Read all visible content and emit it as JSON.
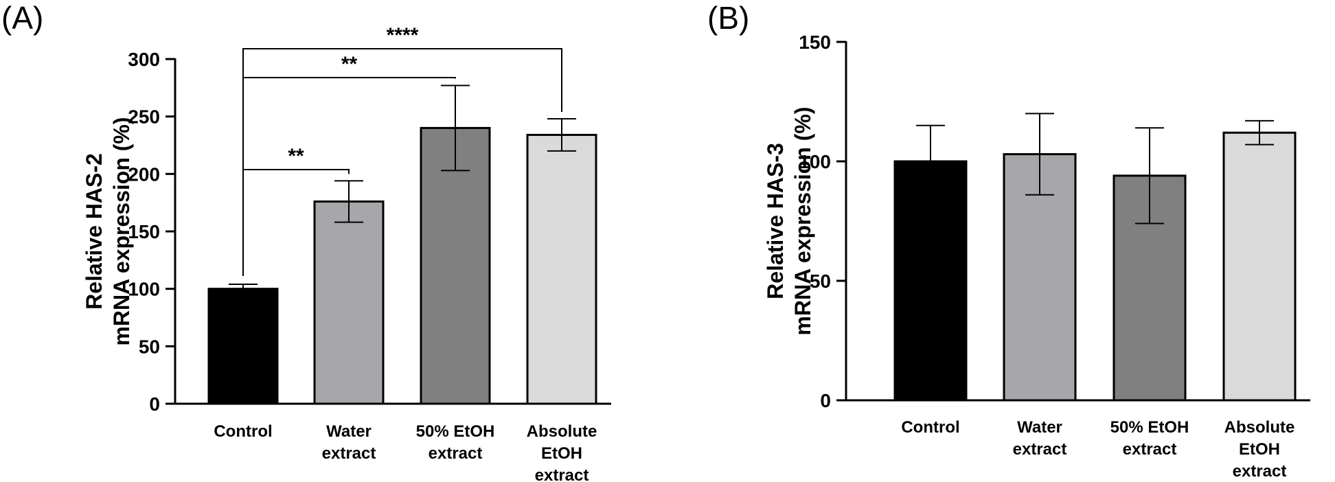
{
  "chart_data": [
    {
      "panel": "(A)",
      "type": "bar",
      "categories": [
        [
          "Control"
        ],
        [
          "Water",
          "extract"
        ],
        [
          "50% EtOH",
          "extract"
        ],
        [
          "Absolute",
          "EtOH",
          "extract"
        ]
      ],
      "values": [
        100,
        176,
        240,
        234
      ],
      "errors": [
        4,
        18,
        37,
        14
      ],
      "colors": [
        "#000000",
        "#a6a6ab",
        "#808080",
        "#dadada"
      ],
      "ylabel_lines": [
        "Relative HAS-2",
        "mRNA expression (%)"
      ],
      "ylim": [
        0,
        300
      ],
      "yticks": [
        0,
        50,
        100,
        150,
        200,
        250,
        300
      ],
      "significance": [
        {
          "from": 0,
          "to": 1,
          "label": "**"
        },
        {
          "from": 0,
          "to": 2,
          "label": "**"
        },
        {
          "from": 0,
          "to": 3,
          "label": "****"
        }
      ]
    },
    {
      "panel": "(B)",
      "type": "bar",
      "categories": [
        [
          "Control"
        ],
        [
          "Water",
          "extract"
        ],
        [
          "50% EtOH",
          "extract"
        ],
        [
          "Absolute",
          "EtOH",
          "extract"
        ]
      ],
      "values": [
        100,
        103,
        94,
        112
      ],
      "errors": [
        15,
        17,
        20,
        5
      ],
      "colors": [
        "#000000",
        "#a6a6ab",
        "#808080",
        "#dadada"
      ],
      "ylabel_lines": [
        "Relative HAS-3",
        "mRNA expression (%)"
      ],
      "ylim": [
        0,
        150
      ],
      "yticks": [
        0,
        50,
        100,
        150
      ],
      "significance": []
    }
  ]
}
